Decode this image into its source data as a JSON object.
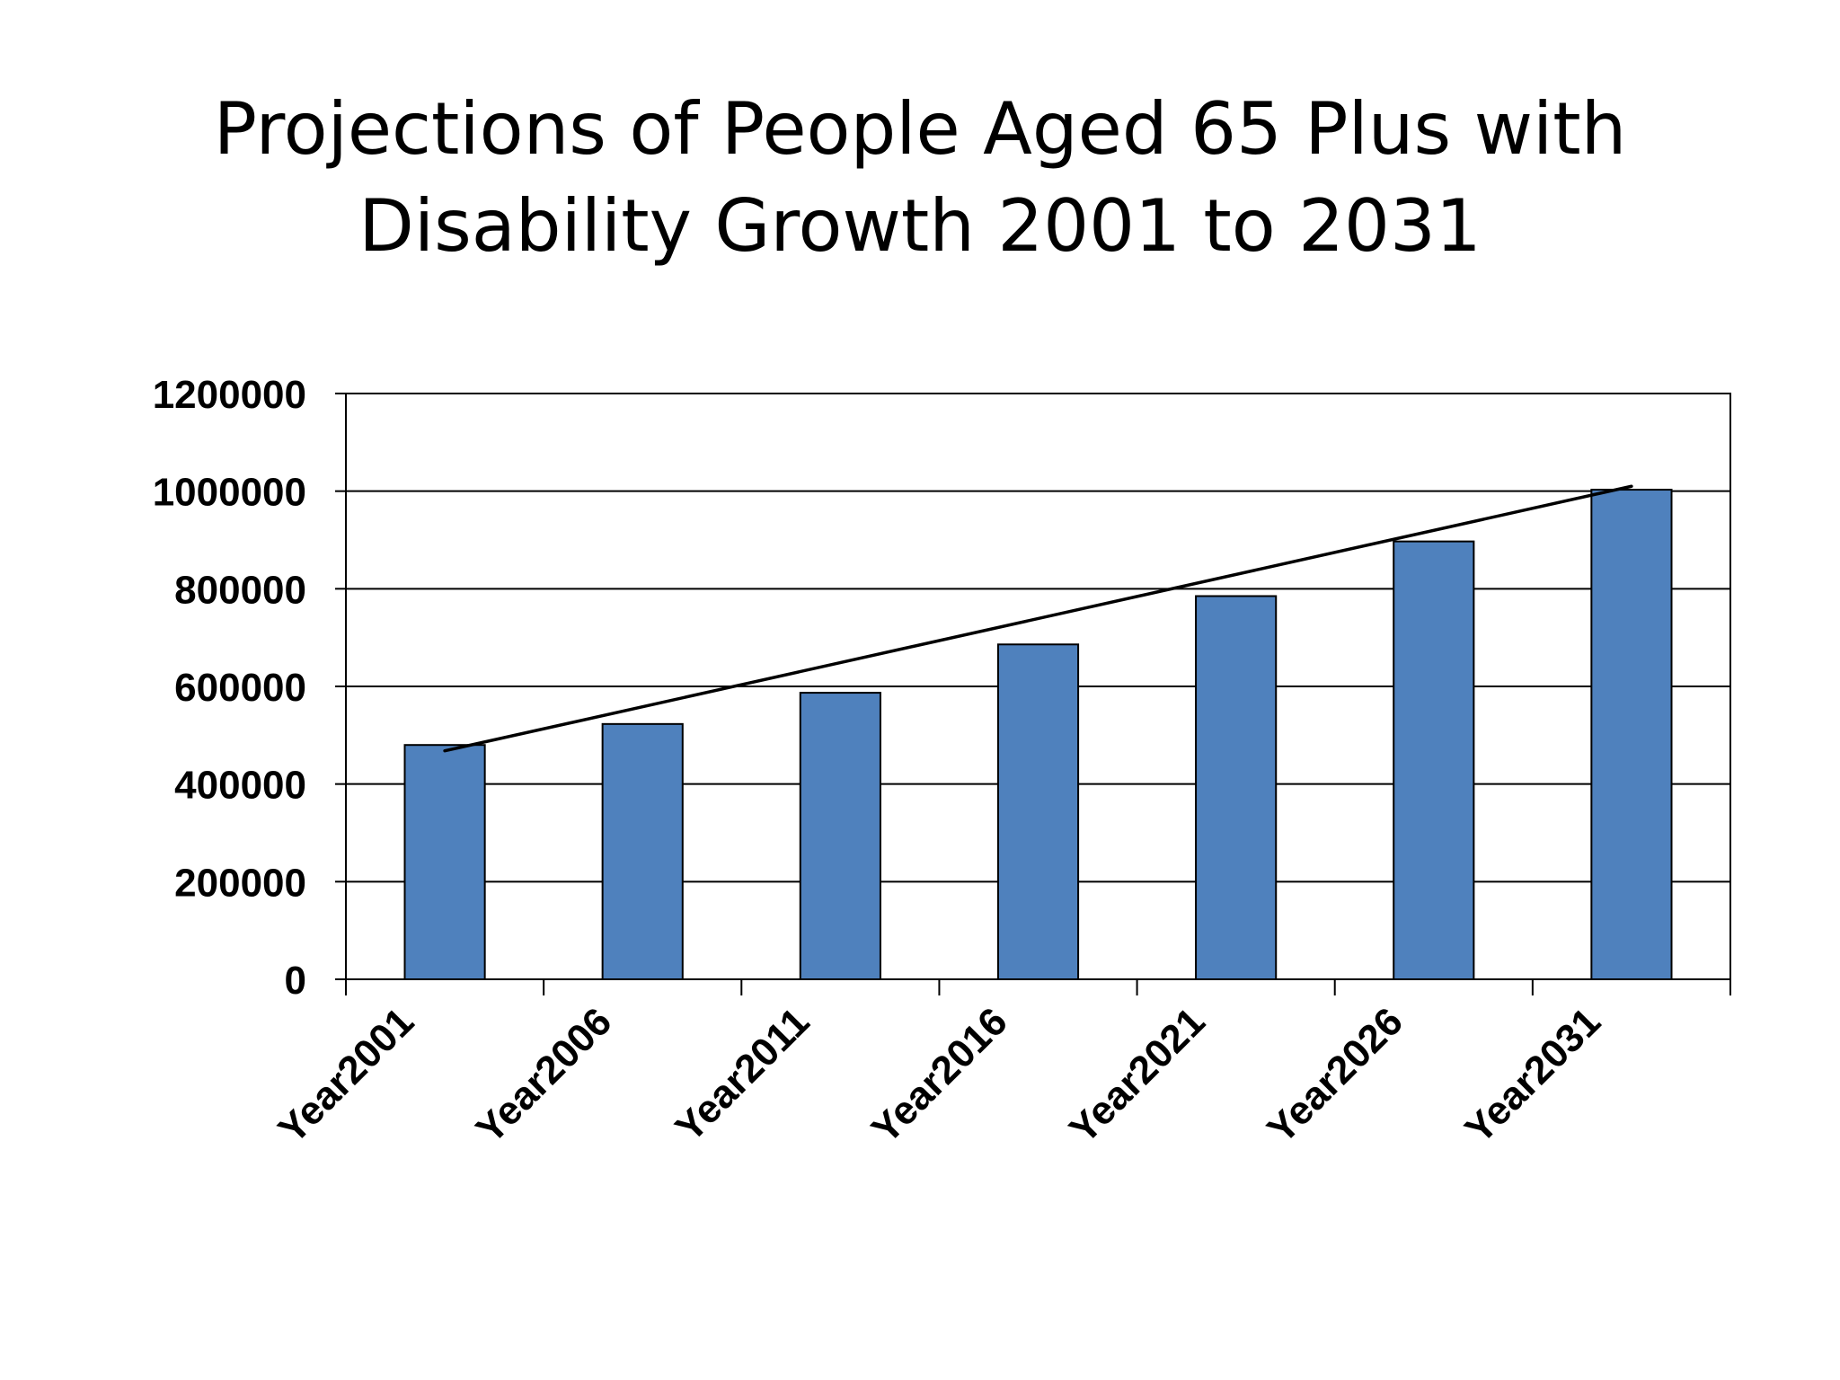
{
  "chart_data": {
    "type": "bar",
    "title": [
      "Projections of People Aged 65 Plus with",
      "Disability Growth 2001 to 2031"
    ],
    "categories": [
      "Year2001",
      "Year2006",
      "Year2011",
      "Year2016",
      "Year2021",
      "Year2026",
      "Year2031"
    ],
    "values": [
      480000,
      523000,
      587000,
      686000,
      785000,
      897000,
      1003000
    ],
    "trendline": {
      "type": "linear-fit",
      "start": 468000,
      "end": 1010000,
      "color": "#000000"
    },
    "ylim": [
      0,
      1200000
    ],
    "yticks": [
      "0",
      "200000",
      "400000",
      "600000",
      "800000",
      "1000000",
      "1200000"
    ],
    "grid": true,
    "legend": "none",
    "bar_color": "#4f81bd",
    "bar_edge_color": "#000000"
  }
}
